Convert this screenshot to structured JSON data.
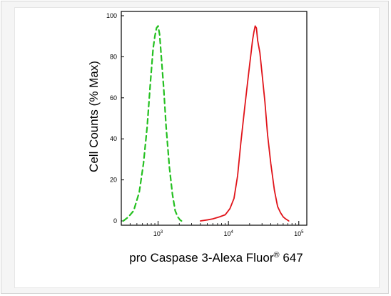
{
  "chart_data": {
    "type": "line",
    "title": "",
    "xlabel": "pro Caspase 3-Alexa Fluor® 647",
    "ylabel": "Cell Counts (% Max)",
    "x_scale": "log",
    "xlim": [
      300,
      130000
    ],
    "ylim": [
      0,
      100
    ],
    "x_tick_labels": [
      "10^3",
      "10^4",
      "10^5"
    ],
    "y_tick_labels": [
      "0",
      "20",
      "40",
      "60",
      "80",
      "100"
    ],
    "series": [
      {
        "color": "#24c020",
        "line_style": "dashed",
        "x": [
          320,
          380,
          450,
          540,
          620,
          700,
          780,
          850,
          900,
          950,
          1000,
          1050,
          1100,
          1200,
          1300,
          1450,
          1600,
          1750,
          1900,
          2050,
          2150
        ],
        "y": [
          0,
          2,
          5,
          14,
          28,
          46,
          68,
          84,
          90,
          94,
          95,
          91,
          82,
          65,
          46,
          26,
          13,
          5,
          2,
          0.5,
          0
        ]
      },
      {
        "color": "#e0141a",
        "line_style": "solid",
        "x": [
          4000,
          5000,
          6000,
          7500,
          9000,
          10500,
          12000,
          13500,
          15000,
          17000,
          18500,
          20000,
          21000,
          22000,
          23000,
          24000,
          25000,
          26000,
          28000,
          30000,
          33000,
          36000,
          40000,
          45000,
          50000,
          55000,
          60000,
          65000,
          72000
        ],
        "y": [
          0,
          0.5,
          1,
          2,
          3,
          6,
          11,
          22,
          38,
          55,
          66,
          76,
          82,
          88,
          92,
          95,
          94,
          88,
          82,
          72,
          58,
          42,
          28,
          15,
          7,
          4,
          2,
          1,
          0
        ]
      }
    ],
    "grid": false,
    "legend": "none"
  }
}
